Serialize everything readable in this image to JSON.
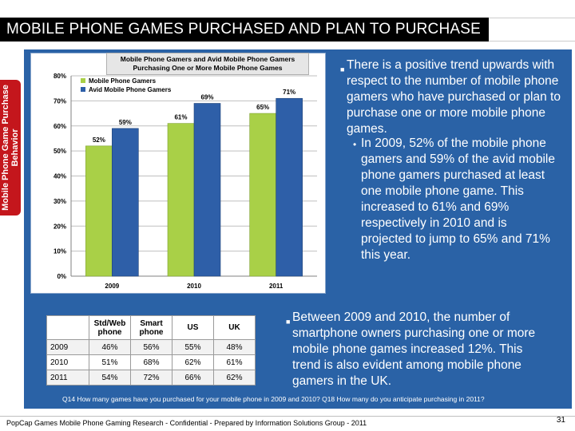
{
  "slide": {
    "title": "MOBILE PHONE GAMES PURCHASED AND PLAN TO PURCHASE",
    "side_label": "Mobile Phone Game Purchase Behavior",
    "page_number": "31",
    "footer": "PopCap Games Mobile Phone Gaming Research - Confidential - Prepared by Information Solutions Group - 2011",
    "footnote": "Q14  How many games have you purchased for your mobile phone in 2009 and 2010?  Q18  How many do you anticipate purchasing in 2011?"
  },
  "colors": {
    "panel": "#2a62a6",
    "title_bar": "#000000",
    "side_tab": "#c4161c",
    "series_1": "#a9d047",
    "series_2": "#2e5fa8"
  },
  "chart_data": {
    "type": "bar",
    "title": "Mobile Phone Gamers and Avid Mobile Phone Gamers Purchasing One or More Mobile Phone Games",
    "categories": [
      "2009",
      "2010",
      "2011"
    ],
    "series": [
      {
        "name": "Mobile Phone Gamers",
        "values": [
          52,
          61,
          65
        ],
        "labels": [
          "52%",
          "61%",
          "65%"
        ]
      },
      {
        "name": "Avid Mobile Phone Gamers",
        "values": [
          59,
          69,
          71
        ],
        "labels": [
          "59%",
          "69%",
          "71%"
        ]
      }
    ],
    "ylim": [
      0,
      80
    ],
    "yticks": [
      0,
      10,
      20,
      30,
      40,
      50,
      60,
      70,
      80
    ],
    "ytick_labels": [
      "0%",
      "10%",
      "20%",
      "30%",
      "40%",
      "50%",
      "60%",
      "70%",
      "80%"
    ],
    "grid": true,
    "legend_position": "top-left"
  },
  "bullets": {
    "main": "There is a positive trend upwards with respect to the number of mobile phone gamers who have purchased or plan to purchase one or more mobile phone games.",
    "sub": "In 2009, 52% of the mobile phone gamers and 59% of the avid mobile phone gamers purchased at least one mobile phone game.  This increased to 61% and 69% respectively in 2010 and is projected to jump to 65% and 71% this year.",
    "second": "Between 2009 and 2010, the number of smartphone owners purchasing one or more mobile phone games increased 12%.  This trend is also evident among mobile phone gamers in the UK."
  },
  "table": {
    "headers": [
      "",
      "Std/Web phone",
      "Smart phone",
      "US",
      "UK"
    ],
    "rows": [
      [
        "2009",
        "46%",
        "56%",
        "55%",
        "48%"
      ],
      [
        "2010",
        "51%",
        "68%",
        "62%",
        "61%"
      ],
      [
        "2011",
        "54%",
        "72%",
        "66%",
        "62%"
      ]
    ]
  }
}
